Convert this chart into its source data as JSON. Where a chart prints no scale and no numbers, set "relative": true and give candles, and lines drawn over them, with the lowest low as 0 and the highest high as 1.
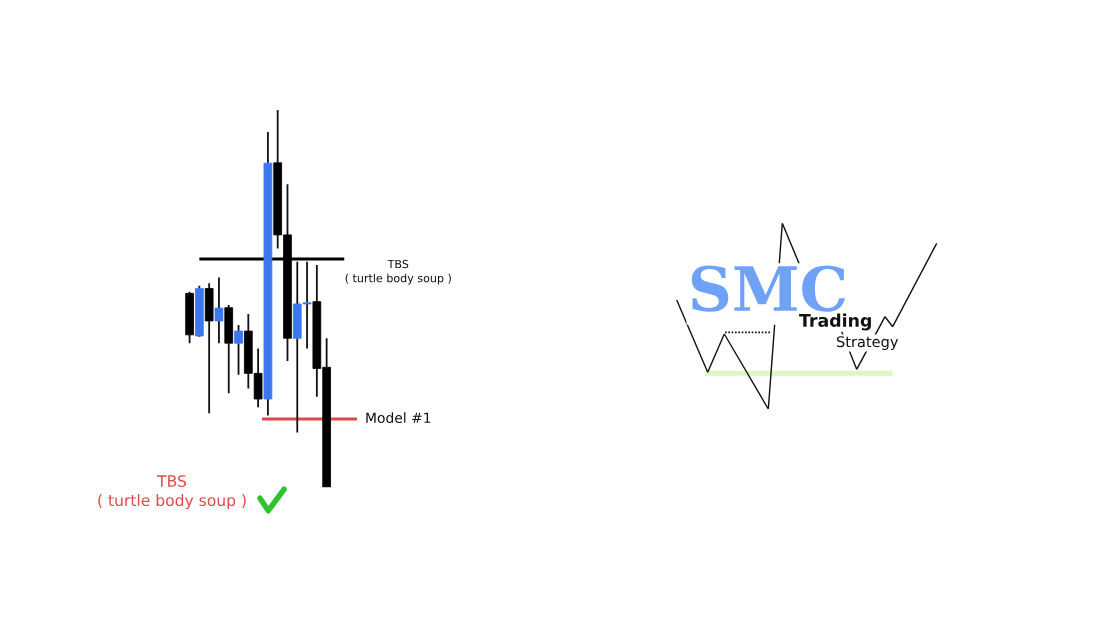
{
  "chart_data": {
    "type": "candlestick",
    "relative": true,
    "categories": [
      null,
      null,
      null,
      null,
      null,
      null,
      null,
      null,
      null,
      null,
      null,
      null,
      null,
      null,
      null
    ],
    "ohlc": [
      [
        0.514,
        0.518,
        0.382,
        0.404
      ],
      [
        0.401,
        0.534,
        0.399,
        0.527
      ],
      [
        0.527,
        0.541,
        0.196,
        0.441
      ],
      [
        0.441,
        0.556,
        0.382,
        0.475
      ],
      [
        0.476,
        0.483,
        0.249,
        0.382
      ],
      [
        0.382,
        0.43,
        0.298,
        0.414
      ],
      [
        0.414,
        0.459,
        0.262,
        0.302
      ],
      [
        0.302,
        0.368,
        0.212,
        0.234
      ],
      [
        0.234,
        0.942,
        0.19,
        0.859
      ],
      [
        0.86,
        1.0,
        0.633,
        0.669
      ],
      [
        0.669,
        0.803,
        0.335,
        0.395
      ],
      [
        0.395,
        0.598,
        0.145,
        0.486
      ],
      [
        0.486,
        0.598,
        0.368,
        0.489
      ],
      [
        0.492,
        0.589,
        0.24,
        0.315
      ],
      [
        0.318,
        0.395,
        0.0,
        0.0
      ]
    ],
    "colors": [
      "#000000",
      "#3b78f0",
      "#000000",
      "#3b78f0",
      "#000000",
      "#3b78f0",
      "#000000",
      "#000000",
      "#3b78f0",
      "#000000",
      "#000000",
      "#3b78f0",
      "#3b78f0",
      "#000000",
      "#000000"
    ],
    "ref_lines": [
      {
        "axis": "y",
        "value": 0.605,
        "label": "TBS\n( turtle body soup )",
        "color": "#000000"
      },
      {
        "axis": "y",
        "value": 0.181,
        "label": "Model #1",
        "color": "#e04848"
      }
    ],
    "annotations": [
      "TBS\n( turtle body soup )",
      "SMC",
      "Trading",
      "Strategy"
    ]
  }
}
